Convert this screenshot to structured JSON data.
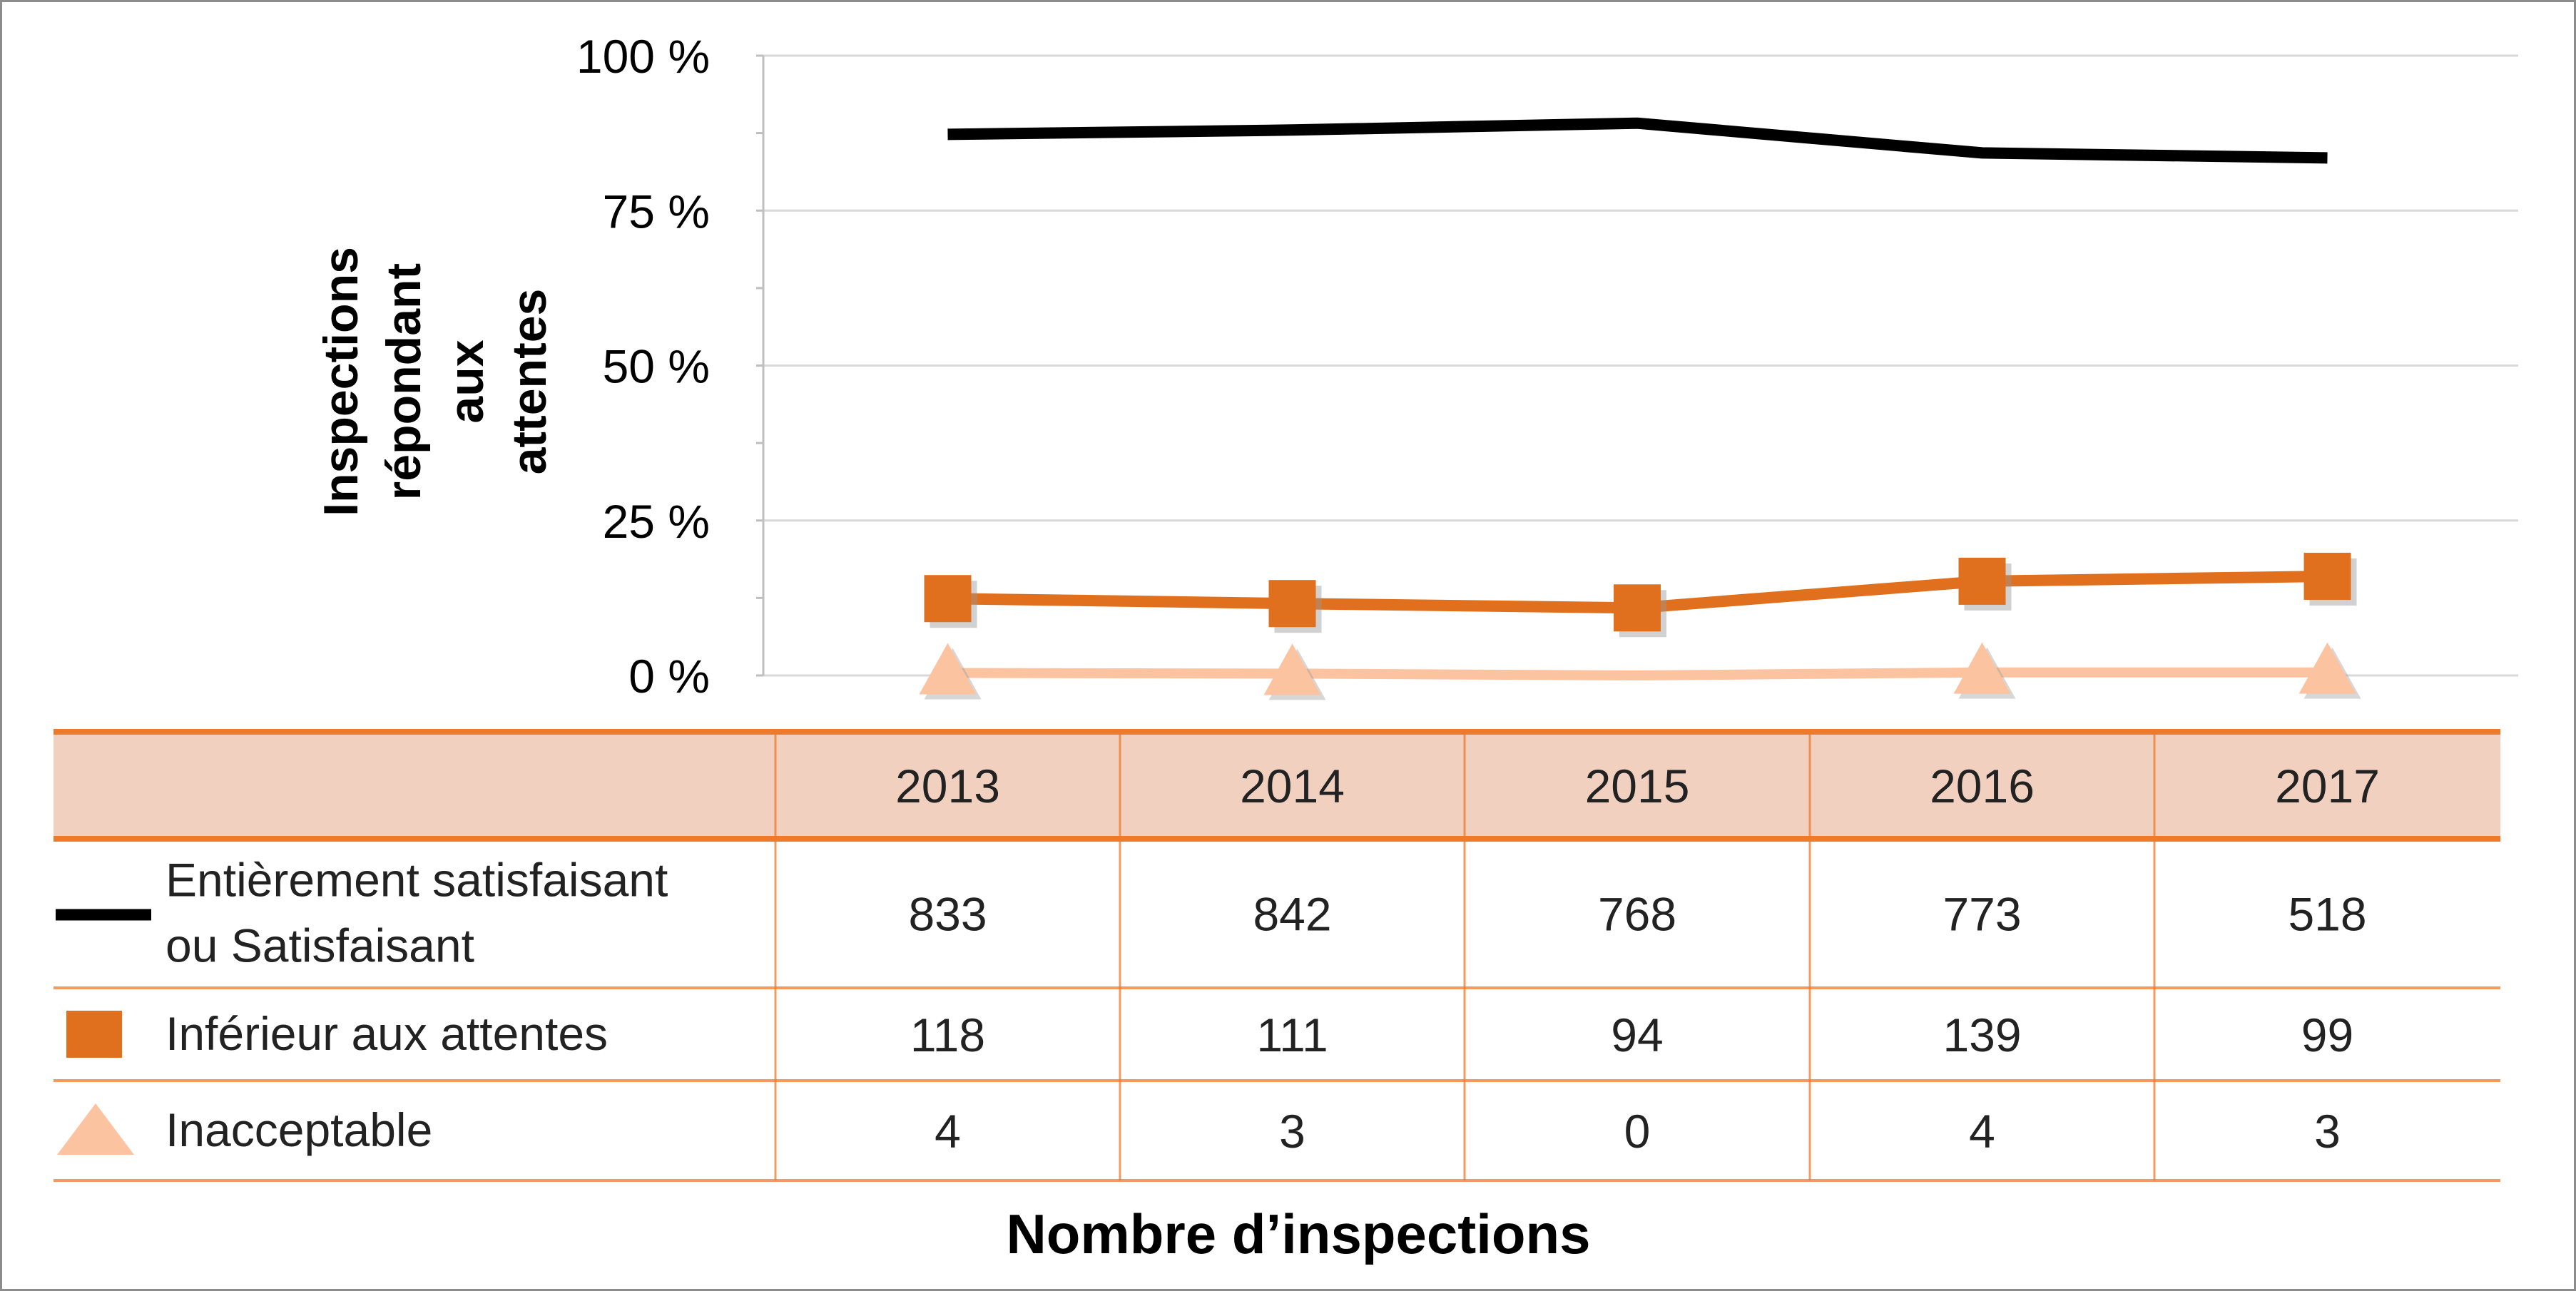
{
  "chart_data": {
    "type": "line",
    "ylabel": "Inspections répondant\naux attentes",
    "xlabel": "Nombre d’inspections",
    "ylim": [
      0,
      100
    ],
    "yticks": [
      "0 %",
      "25 %",
      "50 %",
      "75 %",
      "100 %"
    ],
    "ytick_values": [
      0,
      25,
      50,
      75,
      100
    ],
    "categories": [
      "2013",
      "2014",
      "2015",
      "2016",
      "2017"
    ],
    "grid": true,
    "series": [
      {
        "name": "Entièrement satisfaisant ou Satisfaisant",
        "legend_lines": [
          "Entièrement satisfaisant",
          "ou Satisfaisant"
        ],
        "marker": "none",
        "color": "#000000",
        "values": [
          87.3,
          88.0,
          89.1,
          84.3,
          83.5
        ],
        "counts": [
          "833",
          "842",
          "768",
          "773",
          "518"
        ]
      },
      {
        "name": "Inférieur aux attentes",
        "legend_lines": [
          "Inférieur aux attentes"
        ],
        "marker": "square",
        "color": "#e0701e",
        "values": [
          12.4,
          11.6,
          10.9,
          15.2,
          16.0
        ],
        "counts": [
          "118",
          "111",
          "94",
          "139",
          "99"
        ]
      },
      {
        "name": "Inacceptable",
        "legend_lines": [
          "Inacceptable"
        ],
        "marker": "triangle",
        "color": "#fbc3a0",
        "values": [
          0.4,
          0.3,
          0.0,
          0.5,
          0.5
        ],
        "counts": [
          "4",
          "3",
          "0",
          "4",
          "3"
        ]
      }
    ]
  },
  "colors": {
    "header_fill": "#f2d0bf",
    "table_border": "#ef7a2a",
    "grid": "#d9d9d9"
  }
}
